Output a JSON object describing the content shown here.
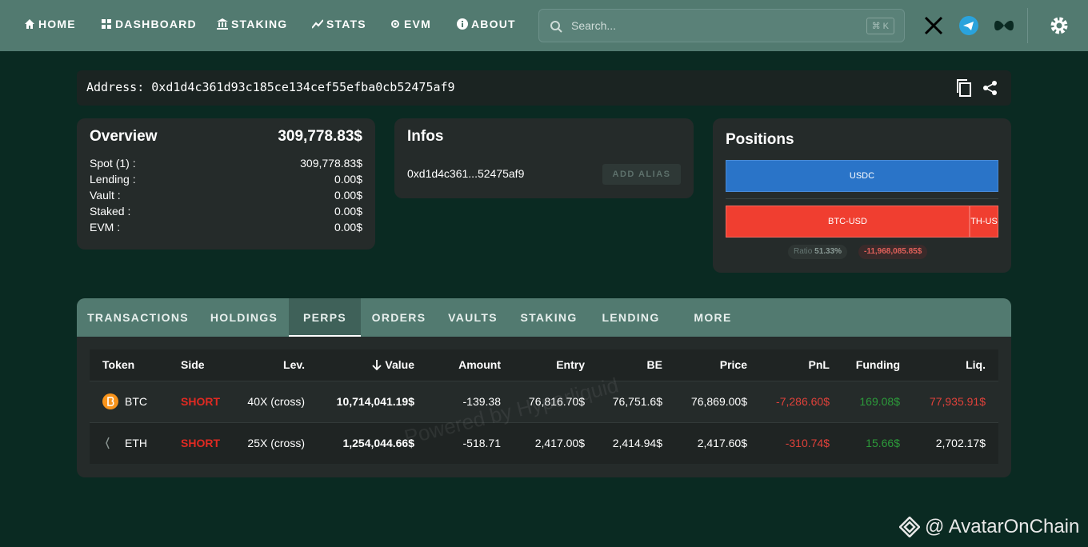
{
  "nav": {
    "items": [
      "HOME",
      "DASHBOARD",
      "STAKING",
      "STATS",
      "EVM",
      "ABOUT"
    ],
    "search_placeholder": "Search...",
    "search_shortcut": "⌘ K"
  },
  "address": {
    "label": "Address:",
    "value": "0xd1d4c361d93c185ce134cef55efba0cb52475af9"
  },
  "overview": {
    "title": "Overview",
    "total": "309,778.83$",
    "rows": [
      {
        "label": "Spot (1) :",
        "value": "309,778.83$"
      },
      {
        "label": "Lending :",
        "value": "0.00$"
      },
      {
        "label": "Vault :",
        "value": "0.00$"
      },
      {
        "label": "Staked :",
        "value": "0.00$"
      },
      {
        "label": "EVM :",
        "value": "0.00$"
      }
    ]
  },
  "infos": {
    "title": "Infos",
    "address_short": "0xd1d4c361...52475af9",
    "button": "ADD ALIAS"
  },
  "positions": {
    "title": "Positions",
    "long": [
      "USDC"
    ],
    "short": [
      "BTC-USD",
      "TH-US"
    ],
    "ratio_label": "Ratio",
    "ratio": "51.33%",
    "pnl": "-11,968,085.85$"
  },
  "tabs": {
    "items": [
      "TRANSACTIONS",
      "HOLDINGS",
      "PERPS",
      "ORDERS",
      "VAULTS",
      "STAKING",
      "LENDING",
      "MORE"
    ],
    "active": 2
  },
  "table": {
    "columns": [
      "Token",
      "Side",
      "Lev.",
      "Value",
      "Amount",
      "Entry",
      "BE",
      "Price",
      "PnL",
      "Funding",
      "Liq."
    ],
    "rows": [
      [
        "BTC",
        "SHORT",
        "40X (cross)",
        "10,714,041.19$",
        "-139.38",
        "76,816.70$",
        "76,751.6$",
        "76,869.00$",
        "-7,286.60$",
        "169.08$",
        "77,935.91$"
      ],
      [
        "ETH",
        "SHORT",
        "25X (cross)",
        "1,254,044.66$",
        "-518.71",
        "2,417.00$",
        "2,414.94$",
        "2,417.60$",
        "-310.74$",
        "15.66$",
        "2,702.17$"
      ]
    ]
  },
  "watermark": "Powered by Hyperliquid",
  "credit": "@ AvatarOnChain"
}
